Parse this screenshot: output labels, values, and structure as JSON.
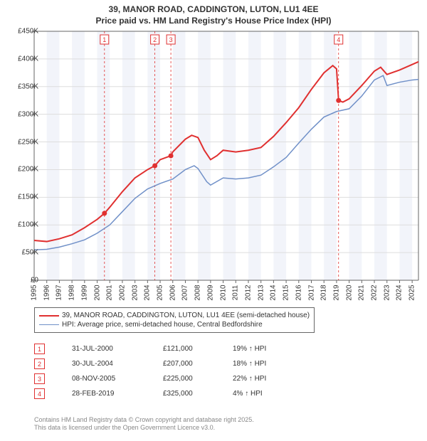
{
  "title_line1": "39, MANOR ROAD, CADDINGTON, LUTON, LU1 4EE",
  "title_line2": "Price paid vs. HM Land Registry's House Price Index (HPI)",
  "chart": {
    "type": "line",
    "background_color": "#ffffff",
    "band_color": "#f2f4fa",
    "grid_color": "#dddddd",
    "axis_color": "#666666",
    "x_years": [
      1995,
      1996,
      1997,
      1998,
      1999,
      2000,
      2001,
      2002,
      2003,
      2004,
      2005,
      2006,
      2007,
      2008,
      2009,
      2010,
      2011,
      2012,
      2013,
      2014,
      2015,
      2016,
      2017,
      2018,
      2019,
      2020,
      2021,
      2022,
      2023,
      2024,
      2025
    ],
    "x_min": 1995,
    "x_max": 2025.5,
    "y_ticks": [
      0,
      50000,
      100000,
      150000,
      200000,
      250000,
      300000,
      350000,
      400000,
      450000
    ],
    "y_tick_labels": [
      "£0",
      "£50K",
      "£100K",
      "£150K",
      "£200K",
      "£250K",
      "£300K",
      "£350K",
      "£400K",
      "£450K"
    ],
    "y_min": 0,
    "y_max": 450000,
    "series": [
      {
        "name": "39, MANOR ROAD, CADDINGTON, LUTON, LU1 4EE (semi-detached house)",
        "color": "#e03030",
        "width": 2,
        "points": [
          [
            1995,
            72000
          ],
          [
            1996,
            70000
          ],
          [
            1997,
            75000
          ],
          [
            1998,
            82000
          ],
          [
            1999,
            95000
          ],
          [
            2000,
            110000
          ],
          [
            2000.58,
            121000
          ],
          [
            2001,
            132000
          ],
          [
            2002,
            160000
          ],
          [
            2003,
            185000
          ],
          [
            2004,
            200000
          ],
          [
            2004.58,
            207000
          ],
          [
            2005,
            218000
          ],
          [
            2005.85,
            225000
          ],
          [
            2006,
            232000
          ],
          [
            2007,
            255000
          ],
          [
            2007.5,
            262000
          ],
          [
            2008,
            258000
          ],
          [
            2008.5,
            235000
          ],
          [
            2009,
            218000
          ],
          [
            2009.5,
            225000
          ],
          [
            2010,
            235000
          ],
          [
            2011,
            232000
          ],
          [
            2012,
            235000
          ],
          [
            2013,
            240000
          ],
          [
            2014,
            260000
          ],
          [
            2015,
            285000
          ],
          [
            2016,
            312000
          ],
          [
            2017,
            345000
          ],
          [
            2018,
            375000
          ],
          [
            2018.7,
            388000
          ],
          [
            2019,
            382000
          ],
          [
            2019.16,
            325000
          ],
          [
            2019.5,
            322000
          ],
          [
            2020,
            328000
          ],
          [
            2021,
            352000
          ],
          [
            2022,
            378000
          ],
          [
            2022.5,
            385000
          ],
          [
            2023,
            372000
          ],
          [
            2024,
            380000
          ],
          [
            2025,
            390000
          ],
          [
            2025.5,
            395000
          ]
        ]
      },
      {
        "name": "HPI: Average price, semi-detached house, Central Bedfordshire",
        "color": "#7090c8",
        "width": 1.5,
        "points": [
          [
            1995,
            55000
          ],
          [
            1996,
            56000
          ],
          [
            1997,
            60000
          ],
          [
            1998,
            66000
          ],
          [
            1999,
            73000
          ],
          [
            2000,
            85000
          ],
          [
            2001,
            100000
          ],
          [
            2002,
            124000
          ],
          [
            2003,
            148000
          ],
          [
            2004,
            165000
          ],
          [
            2005,
            175000
          ],
          [
            2006,
            183000
          ],
          [
            2007,
            200000
          ],
          [
            2007.7,
            207000
          ],
          [
            2008,
            202000
          ],
          [
            2008.7,
            178000
          ],
          [
            2009,
            172000
          ],
          [
            2010,
            185000
          ],
          [
            2011,
            183000
          ],
          [
            2012,
            185000
          ],
          [
            2013,
            190000
          ],
          [
            2014,
            205000
          ],
          [
            2015,
            222000
          ],
          [
            2016,
            248000
          ],
          [
            2017,
            273000
          ],
          [
            2018,
            295000
          ],
          [
            2019,
            305000
          ],
          [
            2020,
            310000
          ],
          [
            2021,
            333000
          ],
          [
            2022,
            362000
          ],
          [
            2022.7,
            370000
          ],
          [
            2023,
            352000
          ],
          [
            2024,
            358000
          ],
          [
            2025,
            362000
          ],
          [
            2025.5,
            363000
          ]
        ]
      }
    ],
    "sale_markers": [
      {
        "n": "1",
        "x": 2000.58,
        "y": 121000,
        "color": "#e03030"
      },
      {
        "n": "2",
        "x": 2004.58,
        "y": 207000,
        "color": "#e03030"
      },
      {
        "n": "3",
        "x": 2005.85,
        "y": 225000,
        "color": "#e03030"
      },
      {
        "n": "4",
        "x": 2019.16,
        "y": 325000,
        "color": "#e03030"
      }
    ]
  },
  "legend": [
    {
      "color": "#e03030",
      "width": 2,
      "label": "39, MANOR ROAD, CADDINGTON, LUTON, LU1 4EE (semi-detached house)"
    },
    {
      "color": "#7090c8",
      "width": 1.5,
      "label": "HPI: Average price, semi-detached house, Central Bedfordshire"
    }
  ],
  "sales": [
    {
      "n": "1",
      "date": "31-JUL-2000",
      "price": "£121,000",
      "diff": "19% ↑ HPI",
      "color": "#e03030"
    },
    {
      "n": "2",
      "date": "30-JUL-2004",
      "price": "£207,000",
      "diff": "18% ↑ HPI",
      "color": "#e03030"
    },
    {
      "n": "3",
      "date": "08-NOV-2005",
      "price": "£225,000",
      "diff": "22% ↑ HPI",
      "color": "#e03030"
    },
    {
      "n": "4",
      "date": "28-FEB-2019",
      "price": "£325,000",
      "diff": "4% ↑ HPI",
      "color": "#e03030"
    }
  ],
  "footnote_line1": "Contains HM Land Registry data © Crown copyright and database right 2025.",
  "footnote_line2": "This data is licensed under the Open Government Licence v3.0."
}
